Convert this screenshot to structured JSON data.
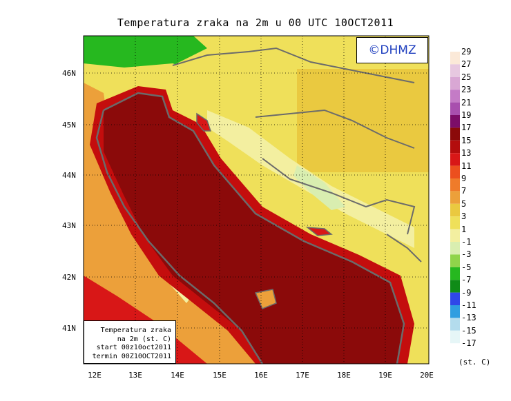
{
  "title": "Temperatura zraka na 2m u 00 UTC 10OCT2011",
  "watermark": "©DHMZ",
  "info_box": {
    "line1": "Temperatura zraka",
    "line2": "na 2m (st. C)",
    "line3": "start 00z10oct2011",
    "line4": "termin 00Z10OCT2011"
  },
  "lat_labels": [
    "46N",
    "45N",
    "44N",
    "43N",
    "42N",
    "41N"
  ],
  "lon_labels": [
    "12E",
    "13E",
    "14E",
    "15E",
    "16E",
    "17E",
    "18E",
    "19E",
    "20E"
  ],
  "colorbar": {
    "units": "(st. C)",
    "labels": [
      "29",
      "27",
      "25",
      "23",
      "21",
      "19",
      "17",
      "15",
      "13",
      "11",
      "9",
      "7",
      "5",
      "3",
      "1",
      "-1",
      "-3",
      "-5",
      "-7",
      "-9",
      "-11",
      "-13",
      "-15",
      "-17"
    ],
    "colors": [
      "#fbe9d8",
      "#e7c8e0",
      "#d9a7d4",
      "#c47bc6",
      "#a84fae",
      "#7c0d68",
      "#8b0a0a",
      "#b30d0d",
      "#d81717",
      "#ec4f1e",
      "#ef7b2a",
      "#eca03a",
      "#eac940",
      "#efe05a",
      "#f3efa0",
      "#d9eeb0",
      "#8fd44a",
      "#26b81f",
      "#0f8b17",
      "#2f48e8",
      "#2f9ee0",
      "#b3dced",
      "#e6f6f7"
    ]
  },
  "map_colors": {
    "sea": "#8b0a0a",
    "sea_coast": "#c40d0d",
    "italy": "#eac940",
    "inland_north": "#efe05a",
    "alps": "#26b81f",
    "mountains": "#f3efa0",
    "frame": "#000000",
    "border": "#6b6b6b"
  }
}
